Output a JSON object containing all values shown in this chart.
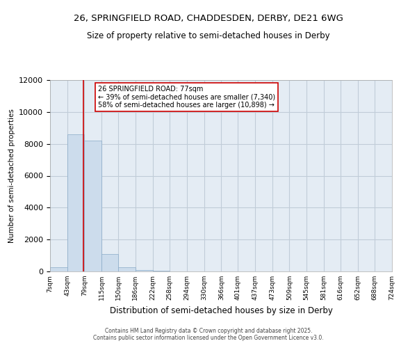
{
  "title_line1": "26, SPRINGFIELD ROAD, CHADDESDEN, DERBY, DE21 6WG",
  "title_line2": "Size of property relative to semi-detached houses in Derby",
  "xlabel": "Distribution of semi-detached houses by size in Derby",
  "ylabel": "Number of semi-detached properties",
  "bin_edges": [
    7,
    43,
    79,
    115,
    150,
    186,
    222,
    258,
    294,
    330,
    366,
    401,
    437,
    473,
    509,
    545,
    581,
    616,
    652,
    688,
    724
  ],
  "bar_heights": [
    250,
    8600,
    8200,
    1100,
    250,
    100,
    50,
    0,
    0,
    0,
    0,
    0,
    0,
    0,
    0,
    0,
    0,
    0,
    0,
    0
  ],
  "bar_color": "#ccdcec",
  "bar_edgecolor": "#88aac8",
  "grid_color": "#c0ccd8",
  "background_color": "#e4ecf4",
  "property_size": 77,
  "redline_color": "#cc0000",
  "annotation_text": "26 SPRINGFIELD ROAD: 77sqm\n← 39% of semi-detached houses are smaller (7,340)\n58% of semi-detached houses are larger (10,898) →",
  "annotation_box_color": "white",
  "annotation_box_edgecolor": "#cc0000",
  "ylim": [
    0,
    12000
  ],
  "yticks": [
    0,
    2000,
    4000,
    6000,
    8000,
    10000,
    12000
  ],
  "footer_line1": "Contains HM Land Registry data © Crown copyright and database right 2025.",
  "footer_line2": "Contains public sector information licensed under the Open Government Licence v3.0."
}
